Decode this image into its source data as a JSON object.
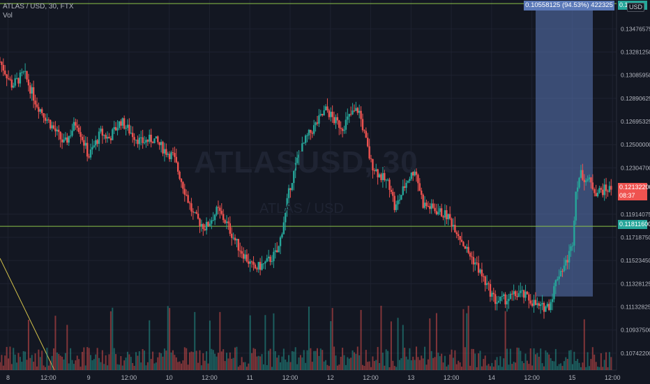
{
  "header": {
    "symbol_title": "ATLAS / USD, 30, FTX",
    "vol_label": "Vol"
  },
  "watermark": {
    "ticker": "ATLASUSD, 30",
    "pair": "ATLAS / USD"
  },
  "price_axis": {
    "currency_badge": "USD",
    "tick_labels": [
      "0.13476575",
      "0.13281250",
      "0.13085950",
      "0.12890625",
      "0.12695325",
      "0.12500000",
      "0.12304700",
      "0.11914075",
      "0.11718750",
      "0.11523450",
      "0.11328125",
      "0.11132825",
      "0.10937500",
      "0.10742200"
    ],
    "ticks": [
      0.13476575,
      0.1328125,
      0.1308595,
      0.12890625,
      0.12695325,
      0.125,
      0.123047,
      0.11914075,
      0.1171875,
      0.1152345,
      0.11328125,
      0.11132825,
      0.109375,
      0.107422
    ],
    "top_tag": "0.1",
    "current_price": "0.12132200",
    "countdown": "08:37",
    "line_price": "0.11811600"
  },
  "time_axis": {
    "labels": [
      "8",
      "12:00",
      "9",
      "12:00",
      "10",
      "12:00",
      "11",
      "12:00",
      "12",
      "12:00",
      "13",
      "12:00",
      "14",
      "12:00",
      "15",
      "12:00"
    ]
  },
  "measure_tool": {
    "label": "0.10558125 (94.53%) 422325",
    "from_price": 0.1122,
    "to_price": 0.1369
  },
  "horizontal_lines": [
    0.1369,
    0.118116
  ],
  "colors": {
    "background": "#131722",
    "up": "#26a69a",
    "down": "#ef5350",
    "line": "#8bc34a",
    "measure": "#5b79b8",
    "trend": "#d4c34a"
  },
  "chart_data": {
    "type": "candlestick",
    "symbol": "ATLAS / USD",
    "interval": "30",
    "exchange": "FTX",
    "ylim": [
      0.106,
      0.1372
    ],
    "x_range": [
      7.9,
      15.55
    ],
    "close_path": [
      [
        7.9,
        0.132
      ],
      [
        8.05,
        0.13
      ],
      [
        8.2,
        0.131
      ],
      [
        8.35,
        0.1285
      ],
      [
        8.5,
        0.127
      ],
      [
        8.7,
        0.125
      ],
      [
        8.85,
        0.127
      ],
      [
        9.0,
        0.124
      ],
      [
        9.15,
        0.126
      ],
      [
        9.25,
        0.1255
      ],
      [
        9.4,
        0.127
      ],
      [
        9.5,
        0.1262
      ],
      [
        9.65,
        0.1252
      ],
      [
        9.8,
        0.1255
      ],
      [
        9.95,
        0.1245
      ],
      [
        10.05,
        0.124
      ],
      [
        10.2,
        0.121
      ],
      [
        10.3,
        0.119
      ],
      [
        10.45,
        0.118
      ],
      [
        10.6,
        0.1195
      ],
      [
        10.7,
        0.1185
      ],
      [
        10.85,
        0.1165
      ],
      [
        10.95,
        0.1155
      ],
      [
        11.05,
        0.1145
      ],
      [
        11.2,
        0.115
      ],
      [
        11.35,
        0.116
      ],
      [
        11.5,
        0.1215
      ],
      [
        11.6,
        0.124
      ],
      [
        11.7,
        0.1255
      ],
      [
        11.8,
        0.1265
      ],
      [
        11.95,
        0.128
      ],
      [
        12.05,
        0.127
      ],
      [
        12.15,
        0.1265
      ],
      [
        12.25,
        0.1275
      ],
      [
        12.35,
        0.128
      ],
      [
        12.5,
        0.1235
      ],
      [
        12.6,
        0.1225
      ],
      [
        12.75,
        0.1215
      ],
      [
        12.8,
        0.1195
      ],
      [
        12.95,
        0.122
      ],
      [
        13.05,
        0.123
      ],
      [
        13.15,
        0.12
      ],
      [
        13.3,
        0.1195
      ],
      [
        13.45,
        0.119
      ],
      [
        13.55,
        0.118
      ],
      [
        13.7,
        0.116
      ],
      [
        13.8,
        0.115
      ],
      [
        13.95,
        0.113
      ],
      [
        14.05,
        0.1118
      ],
      [
        14.2,
        0.112
      ],
      [
        14.35,
        0.1125
      ],
      [
        14.5,
        0.1118
      ],
      [
        14.6,
        0.1112
      ],
      [
        14.72,
        0.1115
      ],
      [
        14.82,
        0.114
      ],
      [
        14.92,
        0.115
      ],
      [
        15.0,
        0.1165
      ],
      [
        15.05,
        0.1215
      ],
      [
        15.1,
        0.1225
      ],
      [
        15.2,
        0.122
      ],
      [
        15.3,
        0.121
      ],
      [
        15.4,
        0.1212
      ],
      [
        15.5,
        0.1213
      ]
    ],
    "volume_ylim": [
      0,
      1
    ],
    "horizontal_line": 0.118116,
    "last_price": 0.121322,
    "measure_change": "0.10558125 (94.53%) 422325",
    "grid": true
  }
}
